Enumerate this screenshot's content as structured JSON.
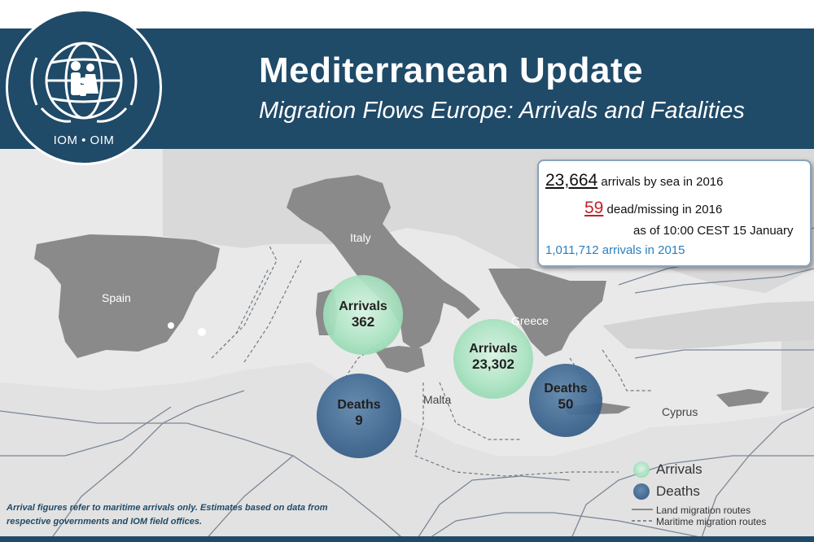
{
  "header": {
    "title": "Mediterranean Update",
    "subtitle": "Migration Flows Europe: Arrivals and Fatalities",
    "logo_text": "IOM • OIM"
  },
  "stats": {
    "arrivals_2016_value": "23,664",
    "arrivals_2016_text": "arrivals by sea in 2016",
    "dead_2016_value": "59",
    "dead_2016_text": "dead/missing in 2016",
    "as_of": "as of 10:00 CEST 15 January",
    "arrivals_2015": "1,011,712 arrivals in 2015"
  },
  "countries": {
    "spain": "Spain",
    "italy": "Italy",
    "greece": "Greece",
    "malta": "Malta",
    "cyprus": "Cyprus"
  },
  "bubbles": {
    "italy_arrivals": {
      "label": "Arrivals",
      "value": "362"
    },
    "italy_deaths": {
      "label": "Deaths",
      "value": "9"
    },
    "greece_arrivals": {
      "label": "Arrivals",
      "value": "23,302"
    },
    "greece_deaths": {
      "label": "Deaths",
      "value": "50"
    }
  },
  "legend": {
    "arrivals": "Arrivals",
    "deaths": "Deaths",
    "land_routes": "Land migration  routes",
    "maritime_routes": "Maritime migration routes"
  },
  "footnote": "Arrival figures  refer to maritime arrivals only. Estimates based on data from respective governments and IOM field offices.",
  "colors": {
    "header_bg": "#1f4a68",
    "arrivals": "#a9e3c1",
    "deaths": "#3d6690",
    "dead_number": "#c0202a",
    "arrivals_2015": "#2a7fc0"
  },
  "icons": [
    "iom-logo-icon",
    "globe-icon",
    "family-icon"
  ]
}
